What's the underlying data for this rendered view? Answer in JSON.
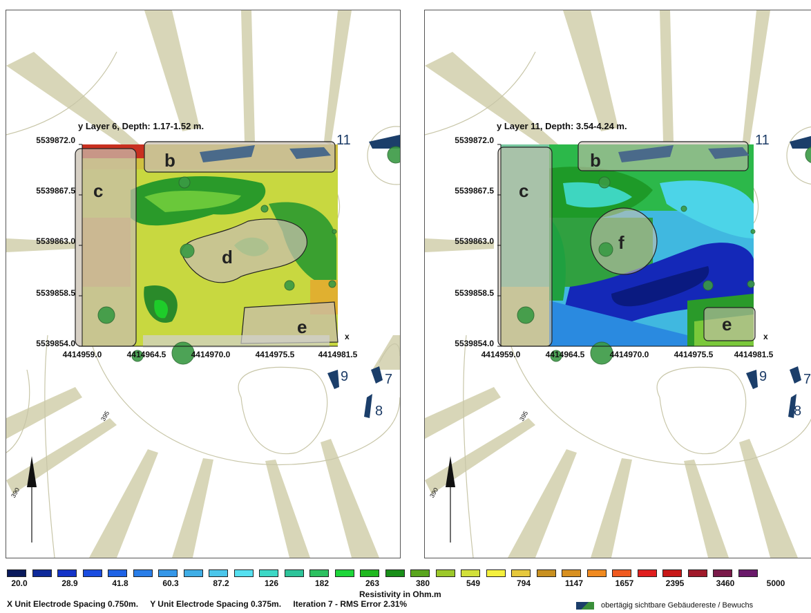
{
  "panels": [
    {
      "layer_title": "y Layer 6, Depth: 1.17-1.52 m.",
      "y_ticks": [
        "5539872.0",
        "5539867.5",
        "5539863.0",
        "5539858.5",
        "5539854.0"
      ],
      "x_ticks": [
        "4414959.0",
        "4414964.5",
        "4414970.0",
        "4414975.5",
        "4414981.5"
      ],
      "x_axis_letter": "x",
      "zones": [
        "b",
        "c",
        "d",
        "e"
      ],
      "map_numbers": [
        "11",
        "9",
        "7",
        "8"
      ],
      "contour_labels": [
        "395",
        "390"
      ]
    },
    {
      "layer_title": "y Layer 11, Depth: 3.54-4.24 m.",
      "y_ticks": [
        "5539872.0",
        "5539867.5",
        "5539863.0",
        "5539858.5",
        "5539854.0"
      ],
      "x_ticks": [
        "4414959.0",
        "4414964.5",
        "4414970.0",
        "4414975.5",
        "4414981.5"
      ],
      "x_axis_letter": "x",
      "zones": [
        "b",
        "c",
        "f",
        "e"
      ],
      "map_numbers": [
        "11",
        "9",
        "7",
        "8"
      ],
      "contour_labels": [
        "395",
        "390"
      ]
    }
  ],
  "colorbar": {
    "title": "Resistivity in Ohm.m",
    "colors": [
      "#0a1a5c",
      "#0f2a9a",
      "#1434c8",
      "#1b4de0",
      "#1f63e6",
      "#2a7ee8",
      "#3697e8",
      "#40aee6",
      "#4cc6ea",
      "#56e0f0",
      "#3dd8c6",
      "#2ec49a",
      "#2cc060",
      "#1ed63a",
      "#1fb81f",
      "#1a8f1a",
      "#5aa51e",
      "#9cc82a",
      "#d2e03a",
      "#f4f03e",
      "#e6c83c",
      "#c89020",
      "#d89020",
      "#f08a20",
      "#f05a20",
      "#e01e1e",
      "#c81818",
      "#a01a2a",
      "#7a1a4a",
      "#6a1a6a"
    ],
    "tick_labels": [
      "20.0",
      "28.9",
      "41.8",
      "60.3",
      "87.2",
      "126",
      "182",
      "263",
      "380",
      "549",
      "794",
      "1147",
      "1657",
      "2395",
      "3460",
      "5000"
    ]
  },
  "footer": {
    "x_spacing": "X Unit Electrode Spacing 0.750m.",
    "y_spacing": "Y Unit Electrode Spacing 0.375m.",
    "iteration": "Iteration 7 - RMS Error 2.31%"
  },
  "legend": {
    "label": "obertägig sichtbare Gebäudereste / Bewuchs",
    "icon": "building-remains-symbol"
  }
}
